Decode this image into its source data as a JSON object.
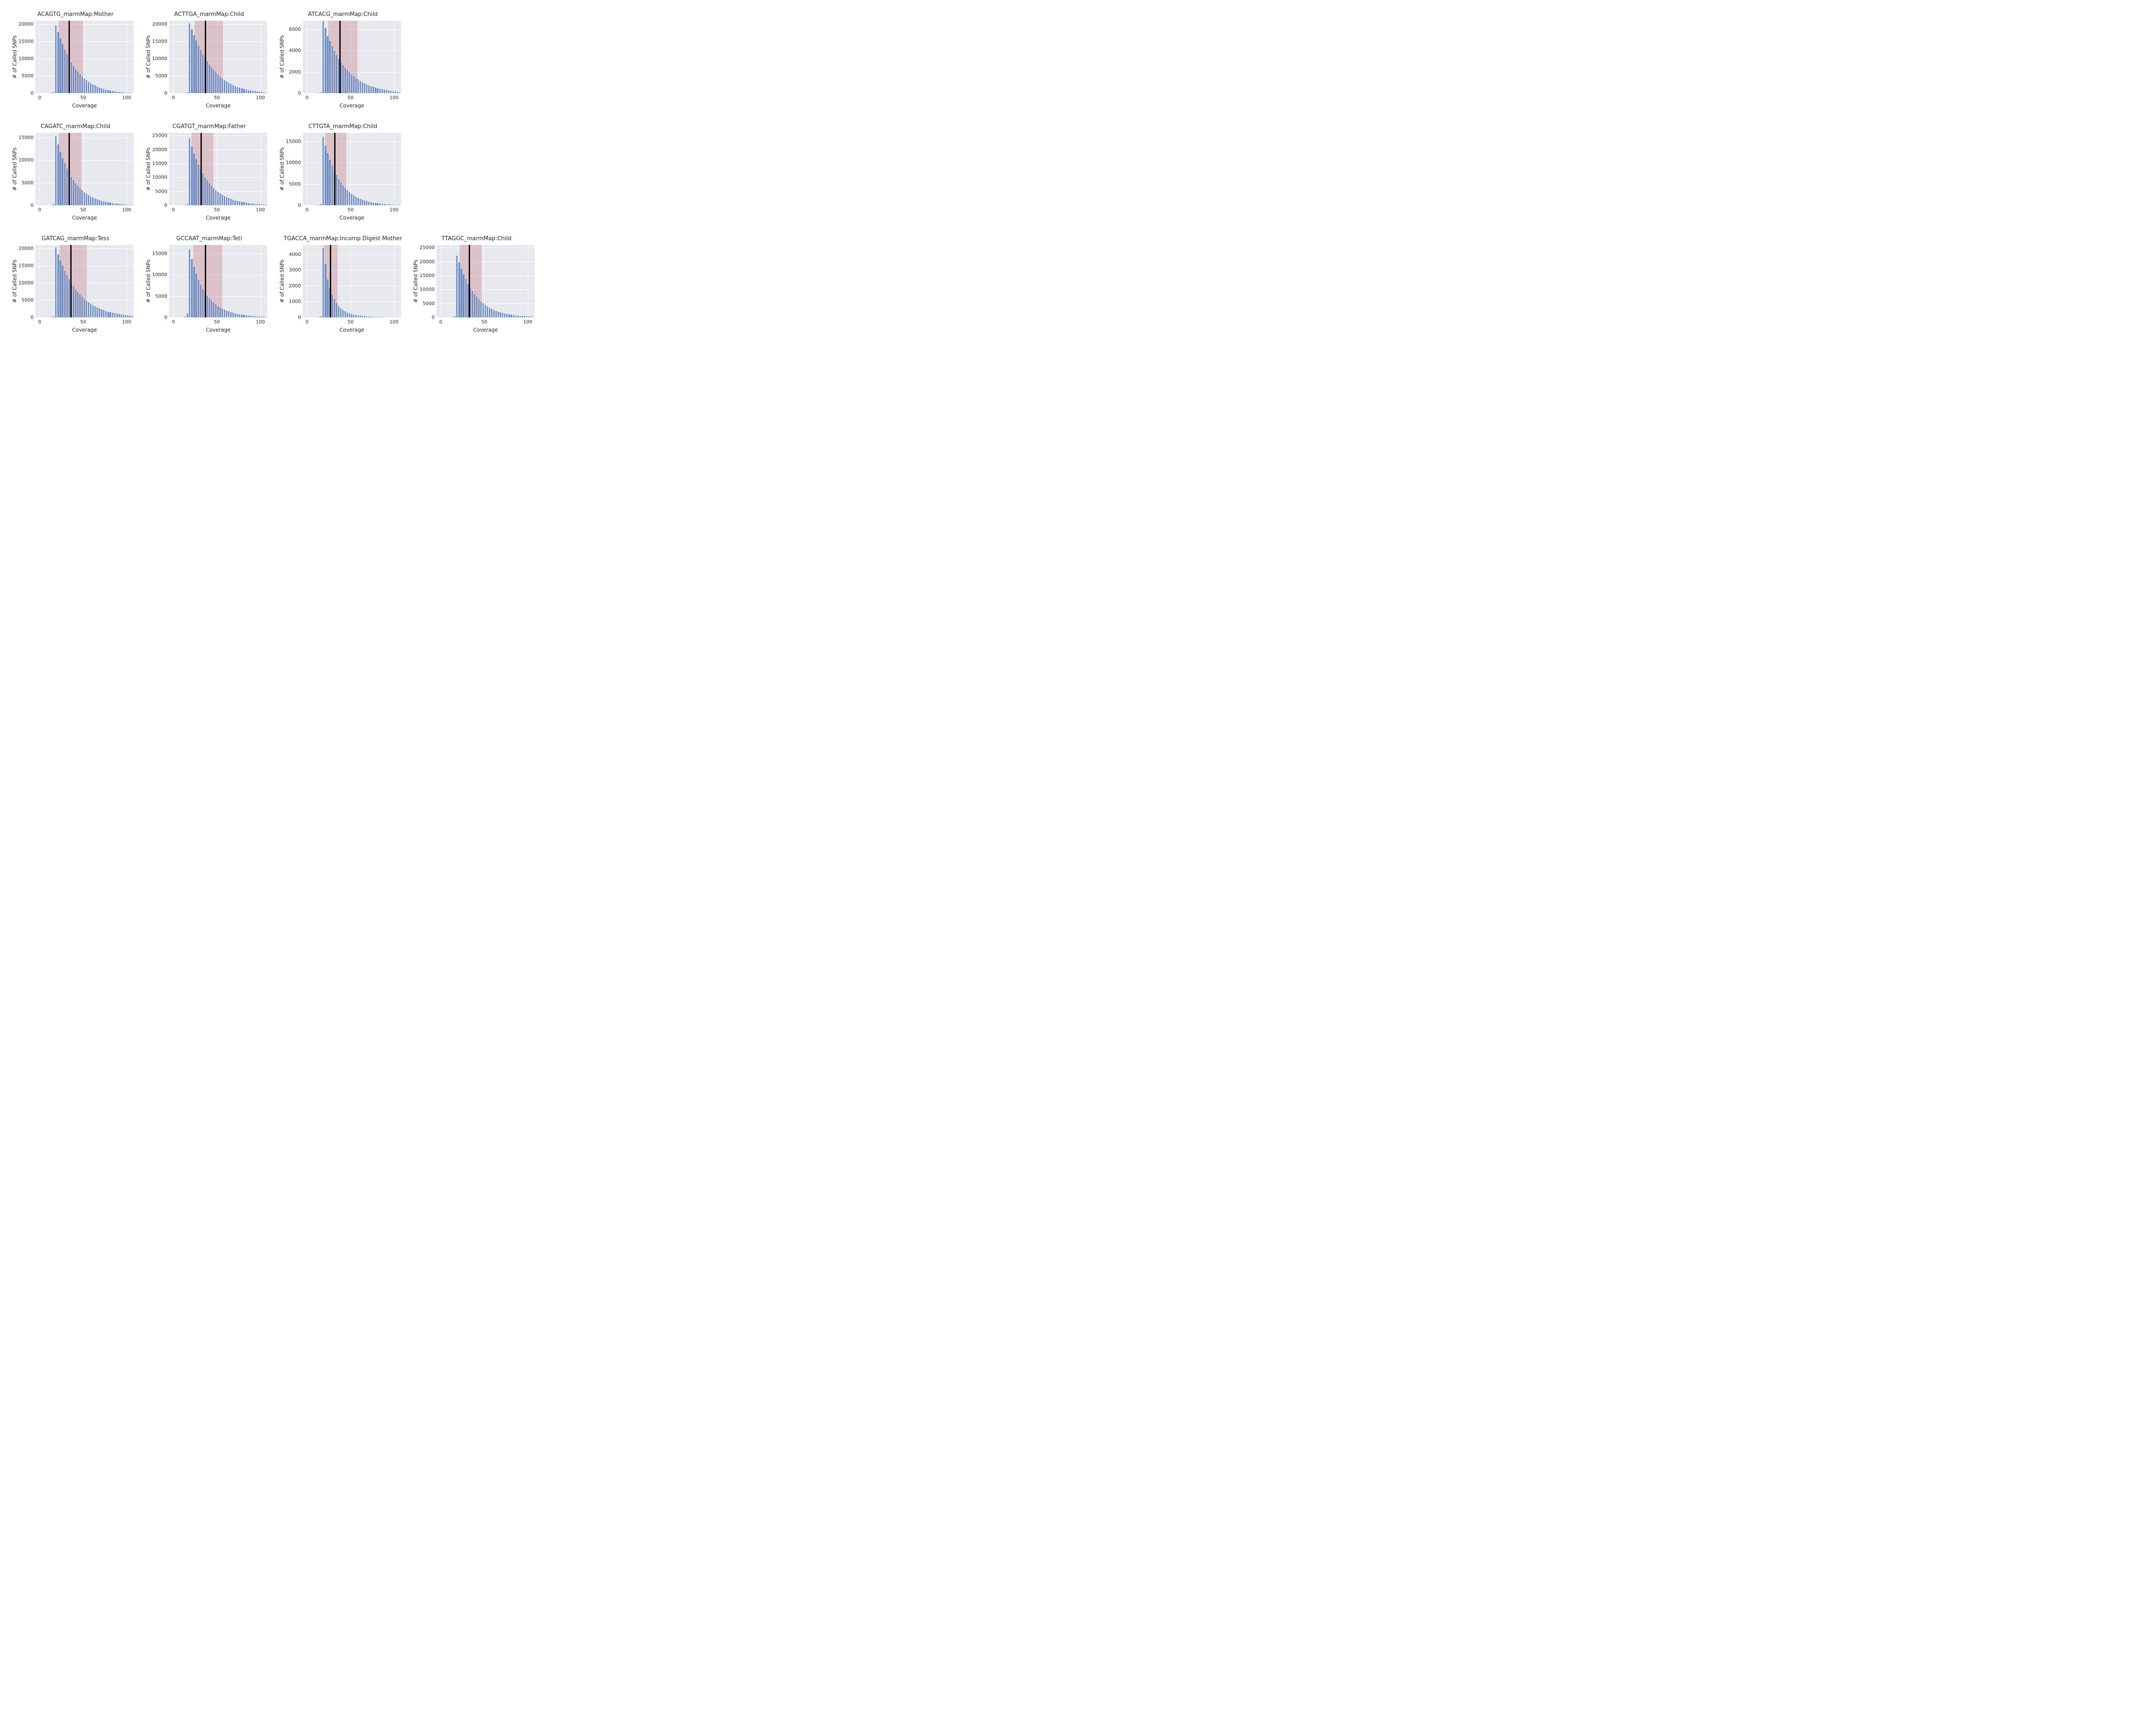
{
  "global": {
    "type": "histogram-small-multiples",
    "background_color": "#ffffff",
    "panel_bg": "#e8e8ef",
    "grid_color": "#ffffff",
    "bar_color": "#6b8fc6",
    "band_color": "rgba(196,120,128,0.35)",
    "vline_color": "#000000",
    "vline_width": 3,
    "title_fontsize": 13,
    "label_fontsize": 12,
    "tick_fontsize": 11,
    "xlabel": "Coverage",
    "ylabel": "# of Called SNPs",
    "xlim": [
      -5,
      108
    ],
    "xticks": [
      0,
      50,
      100
    ],
    "bin_start": 0,
    "bin_width": 2.5,
    "bar_rel_width": 0.62,
    "grid_cols": 4,
    "grid_rows": 3
  },
  "panels": [
    {
      "row": 0,
      "col": 0,
      "title": "ACAGTG_marmMap:Mother",
      "ylim": [
        0,
        21000
      ],
      "yticks": [
        0,
        5000,
        10000,
        15000,
        20000
      ],
      "vline_x": 34,
      "band": [
        22,
        50
      ],
      "bars": [
        0,
        0,
        0,
        0,
        50,
        100,
        300,
        19600,
        17800,
        15900,
        14200,
        12600,
        11200,
        10000,
        8900,
        7900,
        7000,
        6200,
        5500,
        4800,
        4200,
        3700,
        3300,
        2900,
        2500,
        2200,
        1900,
        1650,
        1400,
        1200,
        1000,
        850,
        720,
        600,
        500,
        400,
        320,
        250,
        190,
        140,
        100,
        70,
        40
      ]
    },
    {
      "row": 0,
      "col": 1,
      "title": "ACTTGA_marmMap:Child",
      "ylim": [
        0,
        21000
      ],
      "yticks": [
        0,
        5000,
        10000,
        15000,
        20000
      ],
      "vline_x": 37,
      "band": [
        24,
        57
      ],
      "bars": [
        0,
        0,
        0,
        0,
        50,
        100,
        300,
        20200,
        18500,
        16800,
        15200,
        13800,
        12500,
        11300,
        10200,
        9200,
        8300,
        7500,
        6700,
        6000,
        5400,
        4800,
        4300,
        3800,
        3400,
        3000,
        2650,
        2350,
        2050,
        1800,
        1580,
        1380,
        1200,
        1040,
        900,
        780,
        670,
        570,
        480,
        400,
        330,
        270,
        180
      ]
    },
    {
      "row": 0,
      "col": 2,
      "title": "ATCACG_marmMap:Child",
      "ylim": [
        0,
        6800
      ],
      "yticks": [
        0,
        2000,
        4000,
        6000
      ],
      "vline_x": 38,
      "band": [
        24,
        58
      ],
      "bars": [
        0,
        0,
        0,
        0,
        20,
        40,
        100,
        6750,
        6100,
        5350,
        4900,
        4400,
        3950,
        3550,
        3200,
        2900,
        2620,
        2370,
        2140,
        1940,
        1750,
        1580,
        1420,
        1280,
        1150,
        1030,
        925,
        830,
        740,
        660,
        590,
        525,
        465,
        410,
        360,
        315,
        275,
        240,
        210,
        180,
        155,
        135,
        90
      ]
    },
    {
      "row": 1,
      "col": 0,
      "title": "CAGATC_marmMap:Child",
      "ylim": [
        0,
        16000
      ],
      "yticks": [
        0,
        5000,
        10000,
        15000
      ],
      "vline_x": 34,
      "band": [
        22,
        48
      ],
      "bars": [
        0,
        0,
        0,
        0,
        40,
        80,
        250,
        15200,
        13400,
        11800,
        10400,
        9200,
        8100,
        7150,
        6300,
        5550,
        4880,
        4290,
        3770,
        3310,
        2900,
        2540,
        2220,
        1940,
        1700,
        1480,
        1290,
        1120,
        970,
        840,
        730,
        630,
        540,
        460,
        395,
        335,
        285,
        240,
        200,
        165,
        135,
        110,
        65
      ]
    },
    {
      "row": 1,
      "col": 1,
      "title": "CGATGT_marmMap:Father",
      "ylim": [
        0,
        26000
      ],
      "yticks": [
        0,
        5000,
        10000,
        15000,
        20000,
        25000
      ],
      "vline_x": 32,
      "band": [
        21,
        46
      ],
      "bars": [
        0,
        0,
        0,
        0,
        60,
        120,
        400,
        24000,
        21000,
        18600,
        16500,
        14600,
        12900,
        11400,
        10100,
        8950,
        7920,
        7010,
        6200,
        5480,
        4840,
        4270,
        3770,
        3320,
        2920,
        2570,
        2260,
        1985,
        1740,
        1525,
        1335,
        1165,
        1015,
        885,
        770,
        668,
        580,
        502,
        434,
        373,
        320,
        275,
        170
      ]
    },
    {
      "row": 1,
      "col": 2,
      "title": "CTTGTA_marmMap:Child",
      "ylim": [
        0,
        17000
      ],
      "yticks": [
        0,
        5000,
        10000,
        15000
      ],
      "vline_x": 32,
      "band": [
        21,
        45
      ],
      "bars": [
        0,
        0,
        0,
        0,
        40,
        90,
        280,
        16100,
        14000,
        12200,
        10650,
        9280,
        8090,
        7050,
        6140,
        5350,
        4660,
        4060,
        3530,
        3070,
        2670,
        2320,
        2010,
        1745,
        1510,
        1310,
        1135,
        980,
        845,
        730,
        630,
        540,
        460,
        395,
        337,
        286,
        242,
        204,
        172,
        145,
        121,
        100,
        60
      ]
    },
    {
      "row": 2,
      "col": 0,
      "title": "GATCAG_marmMap:Tess",
      "ylim": [
        0,
        21000
      ],
      "yticks": [
        0,
        5000,
        10000,
        15000,
        20000
      ],
      "vline_x": 36,
      "band": [
        23,
        54
      ],
      "bars": [
        0,
        0,
        0,
        0,
        50,
        100,
        300,
        20200,
        18300,
        16550,
        14970,
        13530,
        12230,
        11050,
        9980,
        9020,
        8140,
        7350,
        6630,
        5980,
        5390,
        4860,
        4380,
        3940,
        3550,
        3190,
        2870,
        2580,
        2320,
        2080,
        1870,
        1675,
        1500,
        1340,
        1198,
        1068,
        952,
        848,
        754,
        670,
        594,
        526,
        350
      ]
    },
    {
      "row": 2,
      "col": 1,
      "title": "GCCAAT_marmMap:Teti",
      "ylim": [
        0,
        17000
      ],
      "yticks": [
        0,
        5000,
        10000,
        15000
      ],
      "vline_x": 37,
      "band": [
        23,
        56
      ],
      "bars": [
        0,
        0,
        0,
        0,
        30,
        200,
        900,
        16000,
        13700,
        11800,
        10200,
        8850,
        7700,
        6700,
        5850,
        5100,
        4460,
        3900,
        3420,
        3000,
        2635,
        2315,
        2035,
        1790,
        1575,
        1385,
        1220,
        1075,
        945,
        830,
        730,
        640,
        562,
        493,
        432,
        378,
        331,
        289,
        252,
        220,
        192,
        167,
        105
      ]
    },
    {
      "row": 2,
      "col": 2,
      "title": "TGACCA_marmMap:Incomp Digest Mother",
      "ylim": [
        0,
        4600
      ],
      "yticks": [
        0,
        1000,
        2000,
        3000,
        4000
      ],
      "vline_x": 27,
      "band": [
        20,
        35
      ],
      "bars": [
        0,
        0,
        0,
        0,
        10,
        30,
        80,
        4400,
        3400,
        2400,
        1850,
        1450,
        1150,
        900,
        725,
        580,
        470,
        380,
        310,
        255,
        210,
        175,
        145,
        122,
        102,
        86,
        72,
        60,
        50,
        42,
        35,
        29,
        24,
        20,
        16,
        13,
        11,
        9,
        7,
        6,
        5,
        4,
        2
      ]
    },
    {
      "row": 2,
      "col": 3,
      "title": "TTAGGC_marmMap:Child",
      "ylim": [
        0,
        26000
      ],
      "yticks": [
        0,
        5000,
        10000,
        15000,
        20000,
        25000
      ],
      "vline_x": 33,
      "band": [
        22,
        47
      ],
      "bars": [
        0,
        0,
        0,
        0,
        60,
        120,
        400,
        22200,
        19800,
        17500,
        15500,
        13700,
        12100,
        10700,
        9460,
        8360,
        7380,
        6520,
        5750,
        5070,
        4470,
        3940,
        3460,
        3040,
        2670,
        2345,
        2055,
        1800,
        1575,
        1378,
        1204,
        1051,
        917,
        800,
        697,
        607,
        528,
        459,
        398,
        345,
        299,
        259,
        160
      ]
    }
  ]
}
